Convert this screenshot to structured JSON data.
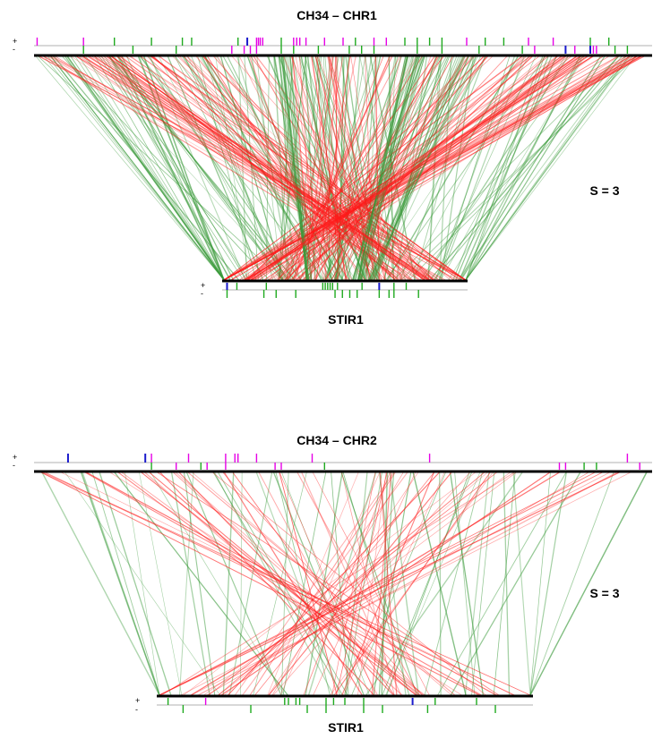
{
  "colors": {
    "same_orientation": "#3a9a3a",
    "inverted": "#ff1a1a",
    "gene_pink": "#e600e6",
    "gene_green": "#1faa1f",
    "gene_blue": "#1a1acc",
    "genome_line": "#000000",
    "strand_line": "#b0b0b0"
  },
  "panels": [
    {
      "top_label": "CH34 – CHR1",
      "bottom_label": "STIR1",
      "s_label": "S = 3",
      "plus_sign": "+",
      "minus_sign": "-",
      "top_plus_markers": [
        {
          "p": 0.005,
          "c": "pink"
        },
        {
          "p": 0.08,
          "c": "pink"
        },
        {
          "p": 0.13,
          "c": "green"
        },
        {
          "p": 0.19,
          "c": "green"
        },
        {
          "p": 0.24,
          "c": "green"
        },
        {
          "p": 0.255,
          "c": "green"
        },
        {
          "p": 0.33,
          "c": "green"
        },
        {
          "p": 0.345,
          "c": "blue"
        },
        {
          "p": 0.36,
          "c": "pink"
        },
        {
          "p": 0.363,
          "c": "pink"
        },
        {
          "p": 0.366,
          "c": "pink"
        },
        {
          "p": 0.37,
          "c": "pink"
        },
        {
          "p": 0.4,
          "c": "green"
        },
        {
          "p": 0.42,
          "c": "pink"
        },
        {
          "p": 0.425,
          "c": "pink"
        },
        {
          "p": 0.43,
          "c": "pink"
        },
        {
          "p": 0.44,
          "c": "pink"
        },
        {
          "p": 0.47,
          "c": "pink"
        },
        {
          "p": 0.5,
          "c": "pink"
        },
        {
          "p": 0.52,
          "c": "green"
        },
        {
          "p": 0.55,
          "c": "pink"
        },
        {
          "p": 0.57,
          "c": "pink"
        },
        {
          "p": 0.6,
          "c": "green"
        },
        {
          "p": 0.62,
          "c": "green"
        },
        {
          "p": 0.64,
          "c": "green"
        },
        {
          "p": 0.66,
          "c": "green"
        },
        {
          "p": 0.7,
          "c": "pink"
        },
        {
          "p": 0.73,
          "c": "green"
        },
        {
          "p": 0.76,
          "c": "green"
        },
        {
          "p": 0.8,
          "c": "pink"
        },
        {
          "p": 0.84,
          "c": "pink"
        },
        {
          "p": 0.9,
          "c": "green"
        },
        {
          "p": 0.93,
          "c": "green"
        }
      ],
      "top_minus_markers": [
        {
          "p": 0.08,
          "c": "green"
        },
        {
          "p": 0.16,
          "c": "green"
        },
        {
          "p": 0.23,
          "c": "green"
        },
        {
          "p": 0.32,
          "c": "pink"
        },
        {
          "p": 0.34,
          "c": "pink"
        },
        {
          "p": 0.35,
          "c": "pink"
        },
        {
          "p": 0.36,
          "c": "pink"
        },
        {
          "p": 0.4,
          "c": "green"
        },
        {
          "p": 0.42,
          "c": "green"
        },
        {
          "p": 0.46,
          "c": "green"
        },
        {
          "p": 0.51,
          "c": "green"
        },
        {
          "p": 0.53,
          "c": "green"
        },
        {
          "p": 0.55,
          "c": "green"
        },
        {
          "p": 0.62,
          "c": "green"
        },
        {
          "p": 0.66,
          "c": "green"
        },
        {
          "p": 0.72,
          "c": "green"
        },
        {
          "p": 0.79,
          "c": "green"
        },
        {
          "p": 0.81,
          "c": "pink"
        },
        {
          "p": 0.86,
          "c": "blue"
        },
        {
          "p": 0.875,
          "c": "pink"
        },
        {
          "p": 0.9,
          "c": "blue"
        },
        {
          "p": 0.905,
          "c": "pink"
        },
        {
          "p": 0.91,
          "c": "pink"
        },
        {
          "p": 0.94,
          "c": "green"
        },
        {
          "p": 0.96,
          "c": "green"
        }
      ],
      "bottom_plus_markers": [
        {
          "p": 0.02,
          "c": "blue"
        },
        {
          "p": 0.06,
          "c": "green"
        },
        {
          "p": 0.18,
          "c": "green"
        },
        {
          "p": 0.41,
          "c": "green"
        },
        {
          "p": 0.42,
          "c": "green"
        },
        {
          "p": 0.43,
          "c": "green"
        },
        {
          "p": 0.44,
          "c": "green"
        },
        {
          "p": 0.45,
          "c": "green"
        },
        {
          "p": 0.47,
          "c": "green"
        },
        {
          "p": 0.57,
          "c": "green"
        },
        {
          "p": 0.64,
          "c": "blue"
        },
        {
          "p": 0.7,
          "c": "green"
        },
        {
          "p": 0.75,
          "c": "green"
        }
      ],
      "bottom_minus_markers": [
        {
          "p": 0.02,
          "c": "green"
        },
        {
          "p": 0.17,
          "c": "green"
        },
        {
          "p": 0.22,
          "c": "green"
        },
        {
          "p": 0.3,
          "c": "green"
        },
        {
          "p": 0.46,
          "c": "green"
        },
        {
          "p": 0.49,
          "c": "green"
        },
        {
          "p": 0.52,
          "c": "green"
        },
        {
          "p": 0.55,
          "c": "green"
        },
        {
          "p": 0.64,
          "c": "green"
        },
        {
          "p": 0.68,
          "c": "green"
        },
        {
          "p": 0.7,
          "c": "green"
        },
        {
          "p": 0.8,
          "c": "green"
        }
      ]
    },
    {
      "top_label": "CH34 – CHR2",
      "bottom_label": "STIR1",
      "s_label": "S = 3",
      "plus_sign": "+",
      "minus_sign": "-",
      "top_plus_markers": [
        {
          "p": 0.055,
          "c": "blue"
        },
        {
          "p": 0.18,
          "c": "blue"
        },
        {
          "p": 0.19,
          "c": "pink"
        },
        {
          "p": 0.25,
          "c": "pink"
        },
        {
          "p": 0.31,
          "c": "pink"
        },
        {
          "p": 0.325,
          "c": "pink"
        },
        {
          "p": 0.33,
          "c": "pink"
        },
        {
          "p": 0.36,
          "c": "pink"
        },
        {
          "p": 0.45,
          "c": "pink"
        },
        {
          "p": 0.64,
          "c": "pink"
        },
        {
          "p": 0.96,
          "c": "pink"
        }
      ],
      "top_minus_markers": [
        {
          "p": 0.19,
          "c": "green"
        },
        {
          "p": 0.23,
          "c": "pink"
        },
        {
          "p": 0.27,
          "c": "green"
        },
        {
          "p": 0.28,
          "c": "pink"
        },
        {
          "p": 0.31,
          "c": "pink"
        },
        {
          "p": 0.39,
          "c": "pink"
        },
        {
          "p": 0.4,
          "c": "pink"
        },
        {
          "p": 0.47,
          "c": "green"
        },
        {
          "p": 0.85,
          "c": "pink"
        },
        {
          "p": 0.86,
          "c": "pink"
        },
        {
          "p": 0.89,
          "c": "green"
        },
        {
          "p": 0.91,
          "c": "green"
        },
        {
          "p": 0.98,
          "c": "pink"
        }
      ],
      "bottom_plus_markers": [
        {
          "p": 0.03,
          "c": "green"
        },
        {
          "p": 0.13,
          "c": "pink"
        },
        {
          "p": 0.34,
          "c": "green"
        },
        {
          "p": 0.35,
          "c": "green"
        },
        {
          "p": 0.37,
          "c": "green"
        },
        {
          "p": 0.38,
          "c": "green"
        },
        {
          "p": 0.45,
          "c": "green"
        },
        {
          "p": 0.47,
          "c": "green"
        },
        {
          "p": 0.5,
          "c": "green"
        },
        {
          "p": 0.55,
          "c": "green"
        },
        {
          "p": 0.68,
          "c": "blue"
        },
        {
          "p": 0.74,
          "c": "green"
        },
        {
          "p": 0.85,
          "c": "green"
        }
      ],
      "bottom_minus_markers": [
        {
          "p": 0.07,
          "c": "green"
        },
        {
          "p": 0.25,
          "c": "green"
        },
        {
          "p": 0.4,
          "c": "green"
        },
        {
          "p": 0.45,
          "c": "green"
        },
        {
          "p": 0.55,
          "c": "green"
        },
        {
          "p": 0.6,
          "c": "green"
        },
        {
          "p": 0.72,
          "c": "green"
        },
        {
          "p": 0.9,
          "c": "green"
        }
      ]
    }
  ]
}
